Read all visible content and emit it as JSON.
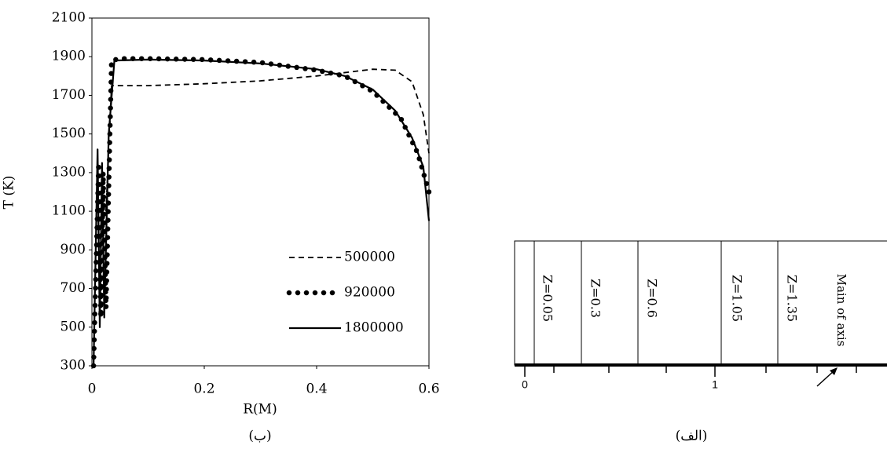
{
  "chart_data": {
    "type": "line",
    "xlabel": "R(M)",
    "ylabel": "T (K)",
    "caption": "(ب)",
    "xlim": [
      0,
      0.6
    ],
    "xticks": [
      0,
      0.2,
      0.4,
      0.6
    ],
    "ylim": [
      300,
      2100
    ],
    "yticks": [
      300,
      500,
      700,
      900,
      1100,
      1300,
      1500,
      1700,
      1900,
      2100
    ],
    "legend": "lower right",
    "series": [
      {
        "name": "500000",
        "style": "dashed",
        "color": "#000000",
        "x": [
          0.025,
          0.035,
          0.1,
          0.2,
          0.3,
          0.4,
          0.5,
          0.54,
          0.57,
          0.59,
          0.6
        ],
        "values": [
          1100,
          1750,
          1750,
          1760,
          1775,
          1800,
          1835,
          1830,
          1770,
          1600,
          1400
        ]
      },
      {
        "name": "920000",
        "style": "dotted",
        "color": "#000000",
        "x": [
          0.003,
          0.012,
          0.016,
          0.02,
          0.025,
          0.035,
          0.05,
          0.1,
          0.2,
          0.3,
          0.4,
          0.45,
          0.5,
          0.55,
          0.58,
          0.6
        ],
        "values": [
          300,
          1350,
          550,
          1300,
          600,
          1880,
          1890,
          1890,
          1885,
          1870,
          1830,
          1800,
          1720,
          1580,
          1400,
          1200
        ]
      },
      {
        "name": "1800000",
        "style": "solid",
        "color": "#000000",
        "x": [
          0.003,
          0.01,
          0.014,
          0.018,
          0.022,
          0.03,
          0.04,
          0.1,
          0.2,
          0.3,
          0.4,
          0.45,
          0.5,
          0.54,
          0.57,
          0.59,
          0.6
        ],
        "values": [
          300,
          1420,
          500,
          1350,
          550,
          1500,
          1880,
          1885,
          1880,
          1865,
          1835,
          1800,
          1730,
          1620,
          1480,
          1330,
          1050
        ]
      }
    ]
  },
  "diagram": {
    "zones": [
      "Z=0.05",
      "Z=0.3",
      "Z=0.6",
      "Z=1.05",
      "Z=1.35"
    ],
    "axis_note": "Main of axis",
    "axis_ticks": [
      "0",
      "1"
    ],
    "caption": "(الف)"
  }
}
